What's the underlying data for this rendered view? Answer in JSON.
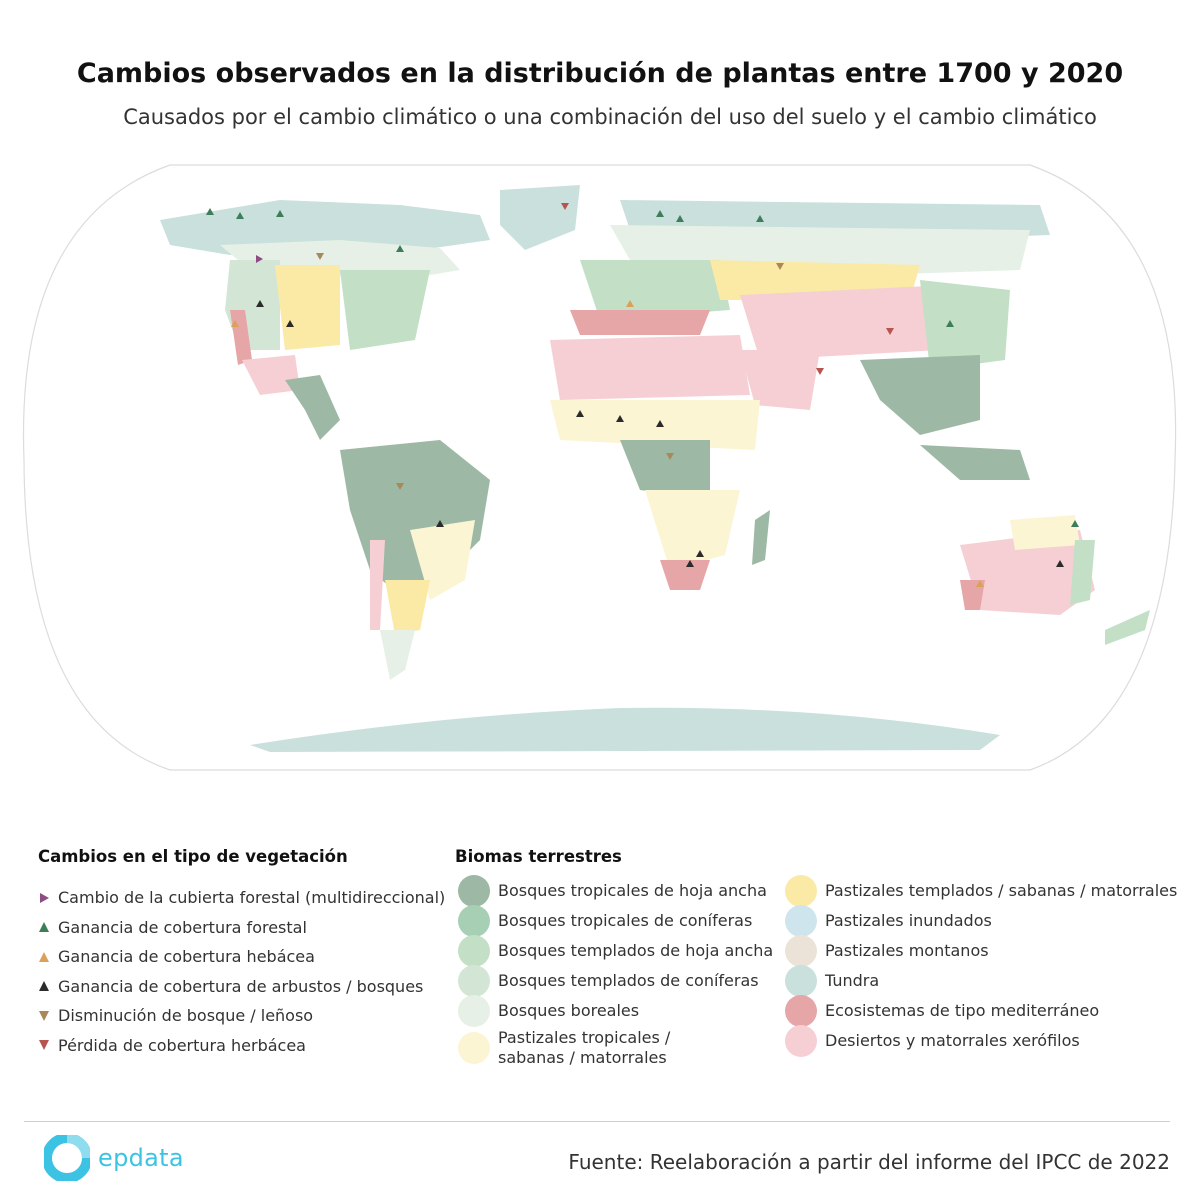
{
  "header": {
    "title": "Cambios observados en la distribución de plantas entre 1700 y 2020",
    "subtitle": "Causados por el cambio climático o una combinación del uso del suelo y el cambio climático"
  },
  "legend_vegetation": {
    "heading": "Cambios en el tipo de vegetación",
    "items": [
      {
        "label": "Cambio de la cubierta forestal (multidireccional)",
        "shape": "triangle-right",
        "color": "#8e4d82"
      },
      {
        "label": "Ganancia de cobertura forestal",
        "shape": "triangle-up",
        "color": "#3d7d5a"
      },
      {
        "label": "Ganancia de cobertura hebácea",
        "shape": "triangle-up",
        "color": "#d9a15a"
      },
      {
        "label": "Ganancia de cobertura de arbustos / bosques",
        "shape": "triangle-up",
        "color": "#2b2b2b"
      },
      {
        "label": "Disminución de bosque / leñoso",
        "shape": "triangle-down",
        "color": "#a9895a"
      },
      {
        "label": "Pérdida de cobertura herbácea",
        "shape": "triangle-down",
        "color": "#b85450"
      }
    ]
  },
  "legend_biomes": {
    "heading": "Biomas terrestres",
    "col1": [
      {
        "label": "Bosques tropicales de hoja ancha",
        "color": "#9db8a5"
      },
      {
        "label": "Bosques tropicales de coníferas",
        "color": "#a7cfb3"
      },
      {
        "label": "Bosques templados de hoja ancha",
        "color": "#c3dfc6"
      },
      {
        "label": "Bosques templados de coníferas",
        "color": "#d3e6d5"
      },
      {
        "label": "Bosques boreales",
        "color": "#e6f0e6"
      },
      {
        "label": "Pastizales tropicales / sabanas / matorrales",
        "color": "#fbf5d3"
      }
    ],
    "col2": [
      {
        "label": "Pastizales templados / sabanas / matorrales",
        "color": "#fbeaa6"
      },
      {
        "label": "Pastizales inundados",
        "color": "#cfe5ee"
      },
      {
        "label": "Pastizales montanos",
        "color": "#ebe3d7"
      },
      {
        "label": "Tundra",
        "color": "#c9e0dc"
      },
      {
        "label": "Ecosistemas de tipo mediterráneo",
        "color": "#e6a5a6"
      },
      {
        "label": "Desiertos y matorrales xerófilos",
        "color": "#f5cfd3"
      }
    ]
  },
  "footer": {
    "logo_text": "epdata",
    "source": "Fuente: Reelaboración a partir del informe del IPCC de 2022"
  }
}
